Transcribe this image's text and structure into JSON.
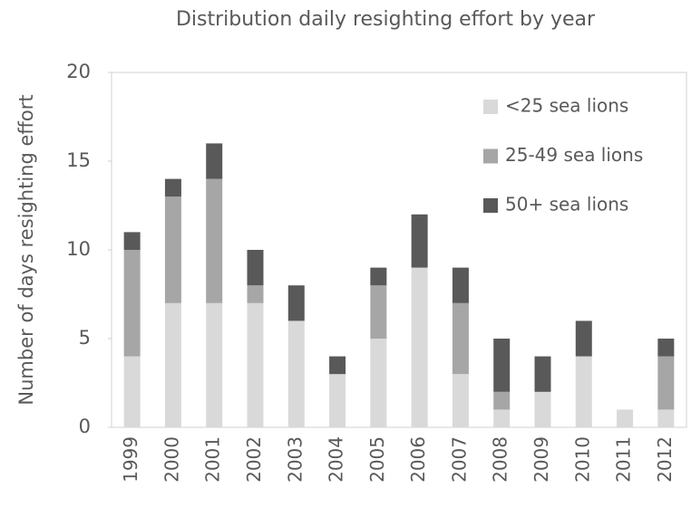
{
  "chart_data": {
    "type": "stacked_bar",
    "title": "Distribution daily resighting effort by year",
    "y_label": "Number of days resighting effort",
    "categories": [
      "1999",
      "2000",
      "2001",
      "2002",
      "2003",
      "2004",
      "2005",
      "2006",
      "2007",
      "2008",
      "2009",
      "2010",
      "2011",
      "2012"
    ],
    "series": [
      {
        "name": "<25 sea lions",
        "color": "#d9d9d9",
        "values": [
          4,
          7,
          7,
          7,
          6,
          3,
          5,
          9,
          3,
          1,
          2,
          4,
          1,
          1
        ]
      },
      {
        "name": "25-49 sea lions",
        "color": "#a6a6a6",
        "values": [
          6,
          6,
          7,
          1,
          0,
          0,
          3,
          0,
          4,
          1,
          0,
          0,
          0,
          3
        ]
      },
      {
        "name": "50+ sea lions",
        "color": "#595959",
        "values": [
          1,
          1,
          2,
          2,
          2,
          1,
          1,
          3,
          2,
          3,
          2,
          2,
          0,
          1
        ]
      }
    ],
    "ylim": [
      0,
      20
    ],
    "yticks": [
      0,
      5,
      10,
      15,
      20
    ],
    "grid": false,
    "legend": "top-right"
  }
}
